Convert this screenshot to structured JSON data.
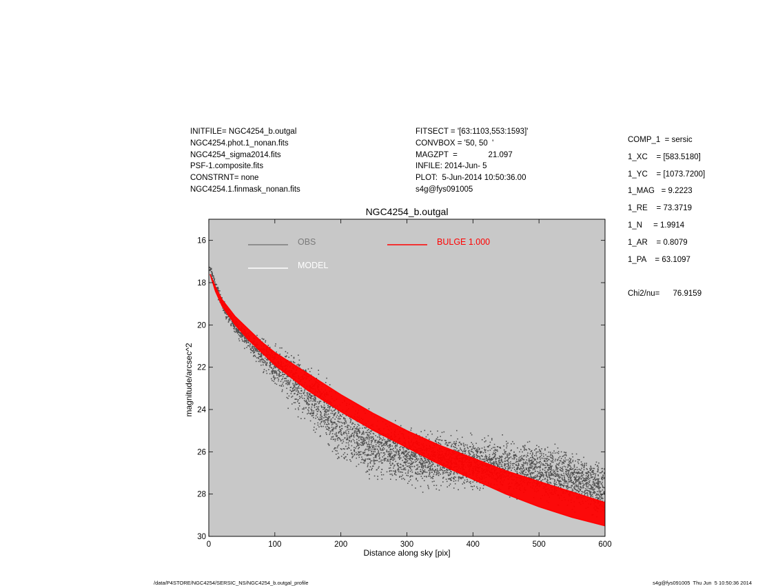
{
  "header_left": [
    "INITFILE= NGC4254_b.outgal",
    "NGC4254.phot.1_nonan.fits",
    "NGC4254_sigma2014.fits",
    "PSF-1.composite.fits",
    "CONSTRNT= none",
    "NGC4254.1.finmask_nonan.fits"
  ],
  "header_mid": [
    "FITSECT = '[63:1103,553:1593]'",
    "CONVBOX = '50, 50  '",
    "MAGZPT  =              21.097",
    "INFILE: 2014-Jun- 5",
    "PLOT:  5-Jun-2014 10:50:36.00",
    "s4g@fys091005"
  ],
  "header_right": [
    "COMP_1  = sersic",
    "1_XC    = [583.5180]",
    "1_YC    = [1073.7200]",
    "1_MAG   = 9.2223",
    "1_RE    = 73.3719",
    "1_N     = 1.9914",
    "1_AR    = 0.8079",
    "1_PA    = 63.1097",
    "",
    "Chi2/nu=      76.9159"
  ],
  "footer_left": "/data/P4STORE/NGC4254/SERSIC_NS/NGC4254_b.outgal_profile",
  "footer_right": "s4g@fys091005  Thu Jun  5 10:50:36 2014",
  "colors": {
    "background": "#c8c8c8",
    "obs": "#505050",
    "model": "#ffffff",
    "bulge": "#ff0000",
    "obs_legend": "#7a7a7a"
  },
  "chart_data": {
    "type": "scatter",
    "title": "NGC4254_b.outgal",
    "xlabel": "Distance along sky [pix]",
    "ylabel": "magnitude/arcsec^2",
    "xlim": [
      0,
      600
    ],
    "ylim": [
      30,
      15
    ],
    "x_ticks": [
      0,
      100,
      200,
      300,
      400,
      500,
      600
    ],
    "y_ticks": [
      16,
      18,
      20,
      22,
      24,
      26,
      28,
      30
    ],
    "legend": [
      {
        "label": "OBS",
        "color": "#7a7a7a"
      },
      {
        "label": "MODEL",
        "color": "#ffffff"
      },
      {
        "label": "BULGE  1.000",
        "color": "#ff0000"
      }
    ],
    "series": [
      {
        "name": "OBS",
        "kind": "scatter",
        "x": [
          2,
          10,
          20,
          30,
          50,
          75,
          100,
          130,
          150,
          175,
          200,
          250,
          300,
          350,
          400,
          450,
          500,
          550,
          600
        ],
        "y_center": [
          17.3,
          18.2,
          19.0,
          19.6,
          20.4,
          21.2,
          21.9,
          22.6,
          23.2,
          24.0,
          24.9,
          25.8,
          26.2,
          26.4,
          26.5,
          26.7,
          26.9,
          27.3,
          27.8
        ],
        "y_spread": [
          0.2,
          0.3,
          0.4,
          0.5,
          0.6,
          0.9,
          1.3,
          1.8,
          2.0,
          2.0,
          2.0,
          1.8,
          1.7,
          1.6,
          1.6,
          1.6,
          1.7,
          1.7,
          1.7
        ]
      },
      {
        "name": "BULGE  1.000",
        "kind": "band",
        "x": [
          2,
          10,
          20,
          40,
          60,
          80,
          100,
          150,
          200,
          250,
          300,
          350,
          400,
          450,
          500,
          550,
          600
        ],
        "y_upper": [
          17.6,
          18.2,
          18.8,
          19.6,
          20.2,
          20.8,
          21.3,
          22.3,
          23.3,
          24.2,
          25.0,
          25.7,
          26.3,
          26.9,
          27.4,
          27.9,
          28.4
        ],
        "y_lower": [
          17.6,
          18.4,
          19.1,
          20.0,
          20.7,
          21.3,
          21.9,
          23.1,
          24.1,
          25.0,
          25.8,
          26.6,
          27.3,
          28.0,
          28.6,
          29.1,
          29.5
        ]
      }
    ]
  }
}
